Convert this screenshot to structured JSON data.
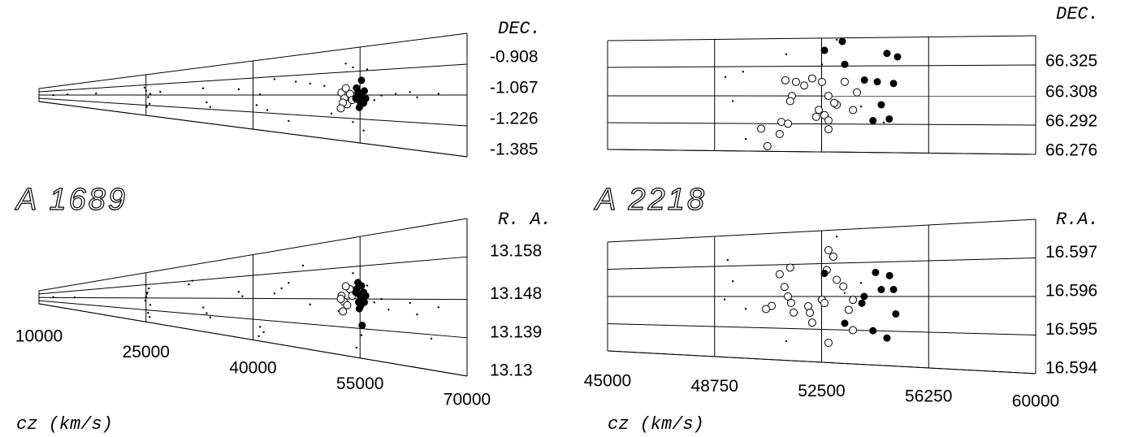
{
  "chart_data": [
    {
      "type": "scatter",
      "title": "A 1689",
      "ylabel": "DEC.",
      "ylim": [
        -1.385,
        -0.749
      ],
      "yticks": [
        -0.908,
        -1.067,
        -1.226,
        -1.385
      ],
      "series": [
        {
          "marker": "dot",
          "color": "#000000",
          "x": [
            12000,
            14000,
            18000,
            25000,
            25300,
            25500,
            24800,
            25600,
            25100,
            27000,
            33000,
            33500,
            34000,
            38000,
            41000,
            40500,
            42000,
            43000,
            45000,
            46000,
            48000,
            50000,
            51000,
            53000,
            54000,
            56000,
            57000,
            58000,
            60000,
            62000,
            63000,
            66000,
            54000,
            55500
          ],
          "y": [
            -1.07,
            -1.05,
            -1.03,
            -1.0,
            -1.1,
            -1.2,
            -0.95,
            -1.05,
            -1.25,
            -1.02,
            -0.99,
            -1.15,
            -1.2,
            -1.01,
            -1.06,
            -1.16,
            -1.2,
            -0.93,
            -1.28,
            -0.96,
            -0.98,
            -1.0,
            -1.2,
            -0.85,
            -1.25,
            -0.9,
            -1.1,
            -1.07,
            -1.06,
            -1.05,
            -1.08,
            -1.06,
            -0.88,
            -1.3
          ]
        },
        {
          "marker": "open",
          "color": "#000000",
          "x": [
            52400,
            52800,
            53200,
            53600,
            52600,
            53900,
            53000,
            52300
          ],
          "y": [
            -1.05,
            -1.09,
            -1.13,
            -1.06,
            -1.12,
            -1.1,
            -1.02,
            -1.16
          ]
        },
        {
          "marker": "filled",
          "color": "#000000",
          "x": [
            54500,
            55000,
            55300,
            54800,
            55500,
            55100,
            54700,
            55800,
            55200,
            54900,
            55600,
            54400
          ],
          "y": [
            -1.02,
            -1.06,
            -1.08,
            -1.1,
            -1.12,
            -1.13,
            -1.05,
            -1.09,
            -0.97,
            -1.15,
            -1.04,
            -1.09
          ]
        }
      ]
    },
    {
      "type": "scatter",
      "ylabel": "R. A.",
      "xlabel": "cz (km/s)",
      "xlim": [
        10000,
        70000
      ],
      "xticks": [
        10000,
        25000,
        40000,
        55000,
        70000
      ],
      "ylim": [
        13.13,
        13.167
      ],
      "yticks": [
        13.158,
        13.148,
        13.139,
        13.13
      ],
      "series": [
        {
          "marker": "dot",
          "color": "#000000",
          "x": [
            12000,
            15000,
            25000,
            25200,
            25400,
            24900,
            25600,
            25300,
            25100,
            25500,
            31000,
            31500,
            33000,
            33500,
            34000,
            38000,
            38500,
            41000,
            41500,
            40800,
            43000,
            44000,
            45000,
            47000,
            48000,
            52000,
            53000,
            54000,
            56000,
            57000,
            58000,
            59000,
            62000,
            63000,
            66000,
            65000,
            54500,
            55200
          ],
          "y": [
            13.1488,
            13.1482,
            13.149,
            13.152,
            13.155,
            13.146,
            13.143,
            13.137,
            13.151,
            13.134,
            13.156,
            13.158,
            13.143,
            13.14,
            13.138,
            13.151,
            13.149,
            13.136,
            13.134,
            13.132,
            13.15,
            13.152,
            13.154,
            13.16,
            13.146,
            13.144,
            13.153,
            13.156,
            13.152,
            13.147,
            13.148,
            13.145,
            13.147,
            13.144,
            13.146,
            13.138,
            13.133,
            13.137
          ]
        },
        {
          "marker": "open",
          "color": "#000000",
          "x": [
            52400,
            52800,
            53200,
            53600,
            52600,
            53900,
            53000,
            52300
          ],
          "y": [
            13.149,
            13.147,
            13.146,
            13.151,
            13.144,
            13.149,
            13.152,
            13.148
          ]
        },
        {
          "marker": "filled",
          "color": "#000000",
          "x": [
            54500,
            55000,
            55300,
            54800,
            55500,
            55100,
            54700,
            55800,
            55200,
            54900,
            55600,
            54400,
            55300
          ],
          "y": [
            13.151,
            13.149,
            13.148,
            13.147,
            13.15,
            13.146,
            13.153,
            13.149,
            13.152,
            13.145,
            13.147,
            13.15,
            13.14
          ]
        }
      ]
    },
    {
      "type": "scatter",
      "title": "A 2218",
      "ylabel": "DEC.",
      "ylim": [
        66.276,
        66.341
      ],
      "yticks": [
        66.325,
        66.308,
        66.292,
        66.276
      ],
      "series": [
        {
          "marker": "dot",
          "color": "#000000",
          "x": [
            49130,
            49390,
            49750,
            51260,
            53030,
            49840,
            53880,
            54680,
            52510
          ],
          "y": [
            66.319,
            66.305,
            66.322,
            66.332,
            66.34,
            66.283,
            66.302,
            66.293,
            66.326
          ]
        },
        {
          "marker": "open",
          "color": "#000000",
          "x": [
            51230,
            51600,
            52170,
            51890,
            52510,
            53310,
            53740,
            52740,
            53030,
            52940,
            51460,
            51400,
            53600,
            52400,
            52600,
            52310,
            52740,
            51090,
            51320,
            52740,
            50380,
            51030,
            50600
          ],
          "y": [
            66.317,
            66.316,
            66.318,
            66.314,
            66.316,
            66.316,
            66.31,
            66.308,
            66.303,
            66.304,
            66.308,
            66.305,
            66.3,
            66.3,
            66.297,
            66.296,
            66.294,
            66.293,
            66.292,
            66.289,
            66.289,
            66.286,
            66.279
          ]
        },
        {
          "marker": "filled",
          "color": "#000000",
          "x": [
            53225,
            52600,
            53310,
            54790,
            55160,
            54000,
            54450,
            55020,
            54590,
            54300,
            54870
          ],
          "y": [
            66.339,
            66.334,
            66.326,
            66.332,
            66.33,
            66.317,
            66.316,
            66.315,
            66.303,
            66.294,
            66.295
          ]
        }
      ]
    },
    {
      "type": "scatter",
      "ylabel": "R.A.",
      "xlabel": "cz (km/s)",
      "xlim": [
        45000,
        60000
      ],
      "xticks": [
        45000,
        48750,
        52500,
        56250,
        60000
      ],
      "ylim": [
        16.594,
        16.598
      ],
      "yticks": [
        16.597,
        16.596,
        16.595,
        16.594
      ],
      "series": [
        {
          "marker": "dot",
          "color": "#000000",
          "x": [
            49210,
            49390,
            49100,
            49840,
            53030,
            51260,
            53310,
            53880
          ],
          "y": [
            16.5972,
            16.5965,
            16.5959,
            16.5956,
            16.5978,
            16.5946,
            16.5961,
            16.5964
          ]
        },
        {
          "marker": "open",
          "color": "#000000",
          "x": [
            52740,
            52910,
            51400,
            51030,
            52680,
            53030,
            53260,
            51200,
            51320,
            53600,
            52510,
            52600,
            51430,
            50750,
            50550,
            52030,
            51520,
            52090,
            52170,
            53450,
            53600,
            52740
          ],
          "y": [
            16.5974,
            16.5972,
            16.5969,
            16.5967,
            16.5968,
            16.5965,
            16.5963,
            16.5963,
            16.596,
            16.5959,
            16.5959,
            16.5958,
            16.5958,
            16.5957,
            16.5956,
            16.5957,
            16.5955,
            16.5955,
            16.5952,
            16.5956,
            16.595,
            16.5946
          ]
        },
        {
          "marker": "filled",
          "color": "#000000",
          "x": [
            52600,
            54390,
            54880,
            54590,
            55020,
            53990,
            53910,
            55100,
            53310,
            54300,
            54790
          ],
          "y": [
            16.5967,
            16.5967,
            16.5966,
            16.5962,
            16.5962,
            16.596,
            16.5958,
            16.5955,
            16.5952,
            16.595,
            16.5948
          ]
        }
      ]
    }
  ]
}
